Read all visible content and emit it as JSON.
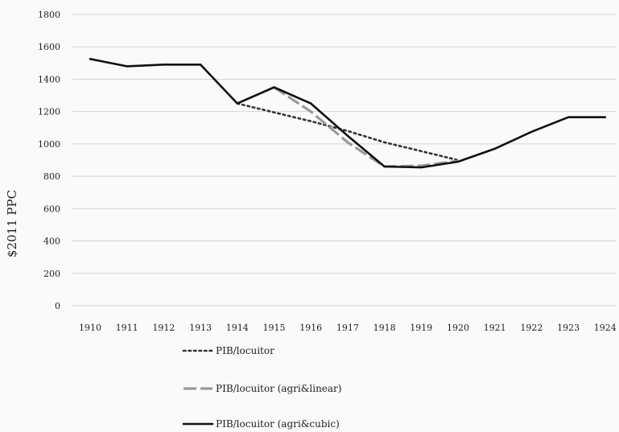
{
  "chart_data": {
    "type": "line",
    "title": "",
    "xlabel": "",
    "ylabel": "$2011 PPC",
    "categories": [
      "1910",
      "1911",
      "1912",
      "1913",
      "1914",
      "1915",
      "1916",
      "1917",
      "1918",
      "1919",
      "1920",
      "1921",
      "1922",
      "1923",
      "1924"
    ],
    "yticks": [
      0,
      200,
      400,
      600,
      800,
      1000,
      1200,
      1400,
      1600,
      1800
    ],
    "ylim": [
      0,
      1800
    ],
    "grid": true,
    "legend_position": "bottom",
    "series": [
      {
        "name": "PIB/locuitor",
        "style": "dotted",
        "color": "#333333",
        "values": [
          null,
          null,
          null,
          null,
          1250,
          1195,
          1140,
          1080,
          1010,
          955,
          900,
          null,
          null,
          null,
          null
        ]
      },
      {
        "name": "PIB/locuitor (agri&linear)",
        "style": "dashed",
        "color": "#9a9a9a",
        "values": [
          null,
          null,
          null,
          null,
          null,
          1350,
          1200,
          1010,
          860,
          865,
          895,
          null,
          null,
          null,
          null
        ]
      },
      {
        "name": "PIB/locuitor (agri&cubic)",
        "style": "solid",
        "color": "#111111",
        "values": [
          1525,
          1480,
          1490,
          1490,
          1250,
          1350,
          1250,
          1050,
          860,
          855,
          890,
          970,
          1075,
          1165,
          1165
        ]
      }
    ]
  }
}
